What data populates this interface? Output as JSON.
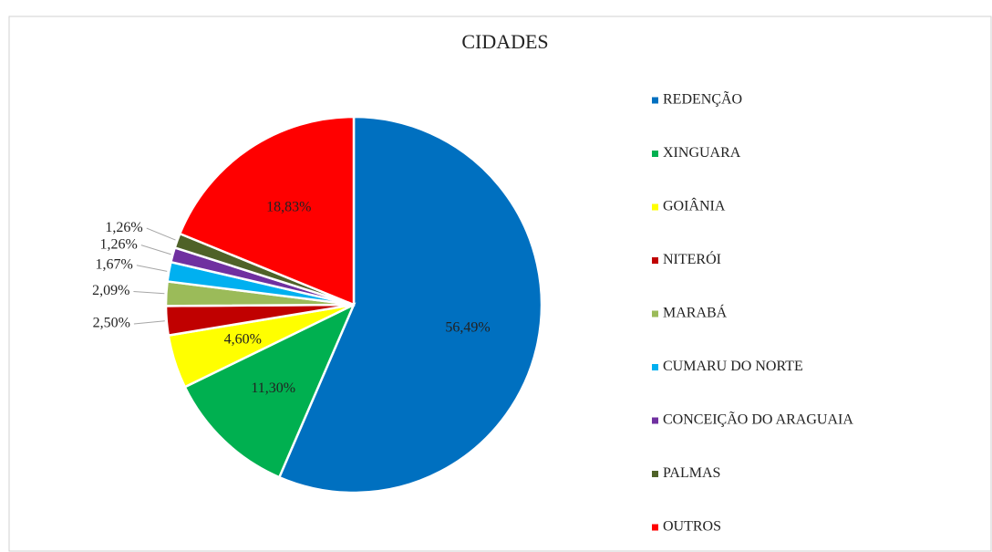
{
  "chart_data": {
    "type": "pie",
    "title": "CIDADES",
    "categories": [
      "REDENÇÃO",
      "XINGUARA",
      "GOIÂNIA",
      "NITERÓI",
      "MARABÁ",
      "CUMARU DO NORTE",
      "CONCEIÇÃO DO ARAGUAIA",
      "PALMAS",
      "OUTROS"
    ],
    "values": [
      56.49,
      11.3,
      4.6,
      2.5,
      2.09,
      1.67,
      1.26,
      1.26,
      18.83
    ],
    "value_labels": [
      "56,49%",
      "11,30%",
      "4,60%",
      "2,50%",
      "2,09%",
      "1,67%",
      "1,26%",
      "1,26%",
      "18,83%"
    ],
    "colors": [
      "#0070C0",
      "#00B050",
      "#FFFF00",
      "#C00000",
      "#9BBB59",
      "#00B0F0",
      "#7030A0",
      "#4F6228",
      "#FF0000"
    ],
    "legend": "right"
  }
}
